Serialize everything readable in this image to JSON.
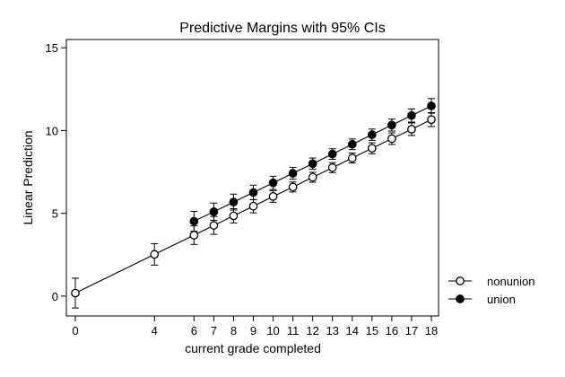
{
  "chart_data": {
    "type": "line",
    "title": "Predictive Margins with 95% CIs",
    "xlabel": "current grade completed",
    "ylabel": "Linear Prediction",
    "xlim": [
      0,
      18
    ],
    "ylim": [
      -1.2,
      15.5
    ],
    "xticks": [
      0,
      4,
      6,
      7,
      8,
      9,
      10,
      11,
      12,
      13,
      14,
      15,
      16,
      17,
      18
    ],
    "yticks": [
      0,
      5,
      10,
      15
    ],
    "legend_position": "right",
    "series": [
      {
        "name": "nonunion",
        "marker": "hollow-circle",
        "color": "#000000",
        "points": [
          {
            "x": 0,
            "y": 0.18,
            "lo": -0.72,
            "hi": 1.08
          },
          {
            "x": 4,
            "y": 2.52,
            "lo": 1.87,
            "hi": 3.17
          },
          {
            "x": 6,
            "y": 3.68,
            "lo": 3.12,
            "hi": 4.24
          },
          {
            "x": 7,
            "y": 4.27,
            "lo": 3.73,
            "hi": 4.81
          },
          {
            "x": 8,
            "y": 4.85,
            "lo": 4.42,
            "hi": 5.28
          },
          {
            "x": 9,
            "y": 5.43,
            "lo": 5.03,
            "hi": 5.83
          },
          {
            "x": 10,
            "y": 6.02,
            "lo": 5.67,
            "hi": 6.37
          },
          {
            "x": 11,
            "y": 6.59,
            "lo": 6.29,
            "hi": 6.89
          },
          {
            "x": 12,
            "y": 7.18,
            "lo": 6.88,
            "hi": 7.48
          },
          {
            "x": 13,
            "y": 7.76,
            "lo": 7.46,
            "hi": 8.06
          },
          {
            "x": 14,
            "y": 8.34,
            "lo": 8.04,
            "hi": 8.64
          },
          {
            "x": 15,
            "y": 8.93,
            "lo": 8.6,
            "hi": 9.26
          },
          {
            "x": 16,
            "y": 9.51,
            "lo": 9.16,
            "hi": 9.86
          },
          {
            "x": 17,
            "y": 10.08,
            "lo": 9.7,
            "hi": 10.46
          },
          {
            "x": 18,
            "y": 10.66,
            "lo": 10.24,
            "hi": 11.08
          }
        ]
      },
      {
        "name": "union",
        "marker": "filled-circle",
        "color": "#000000",
        "points": [
          {
            "x": 6,
            "y": 4.52,
            "lo": 3.92,
            "hi": 5.12
          },
          {
            "x": 7,
            "y": 5.1,
            "lo": 4.58,
            "hi": 5.62
          },
          {
            "x": 8,
            "y": 5.68,
            "lo": 5.2,
            "hi": 6.16
          },
          {
            "x": 9,
            "y": 6.26,
            "lo": 5.82,
            "hi": 6.7
          },
          {
            "x": 10,
            "y": 6.84,
            "lo": 6.44,
            "hi": 7.24
          },
          {
            "x": 11,
            "y": 7.42,
            "lo": 7.06,
            "hi": 7.78
          },
          {
            "x": 12,
            "y": 8.0,
            "lo": 7.66,
            "hi": 8.34
          },
          {
            "x": 13,
            "y": 8.58,
            "lo": 8.26,
            "hi": 8.9
          },
          {
            "x": 14,
            "y": 9.17,
            "lo": 8.85,
            "hi": 9.49
          },
          {
            "x": 15,
            "y": 9.75,
            "lo": 9.41,
            "hi": 10.09
          },
          {
            "x": 16,
            "y": 10.33,
            "lo": 9.97,
            "hi": 10.69
          },
          {
            "x": 17,
            "y": 10.91,
            "lo": 10.51,
            "hi": 11.31
          },
          {
            "x": 18,
            "y": 11.49,
            "lo": 11.05,
            "hi": 11.93
          }
        ]
      }
    ]
  }
}
